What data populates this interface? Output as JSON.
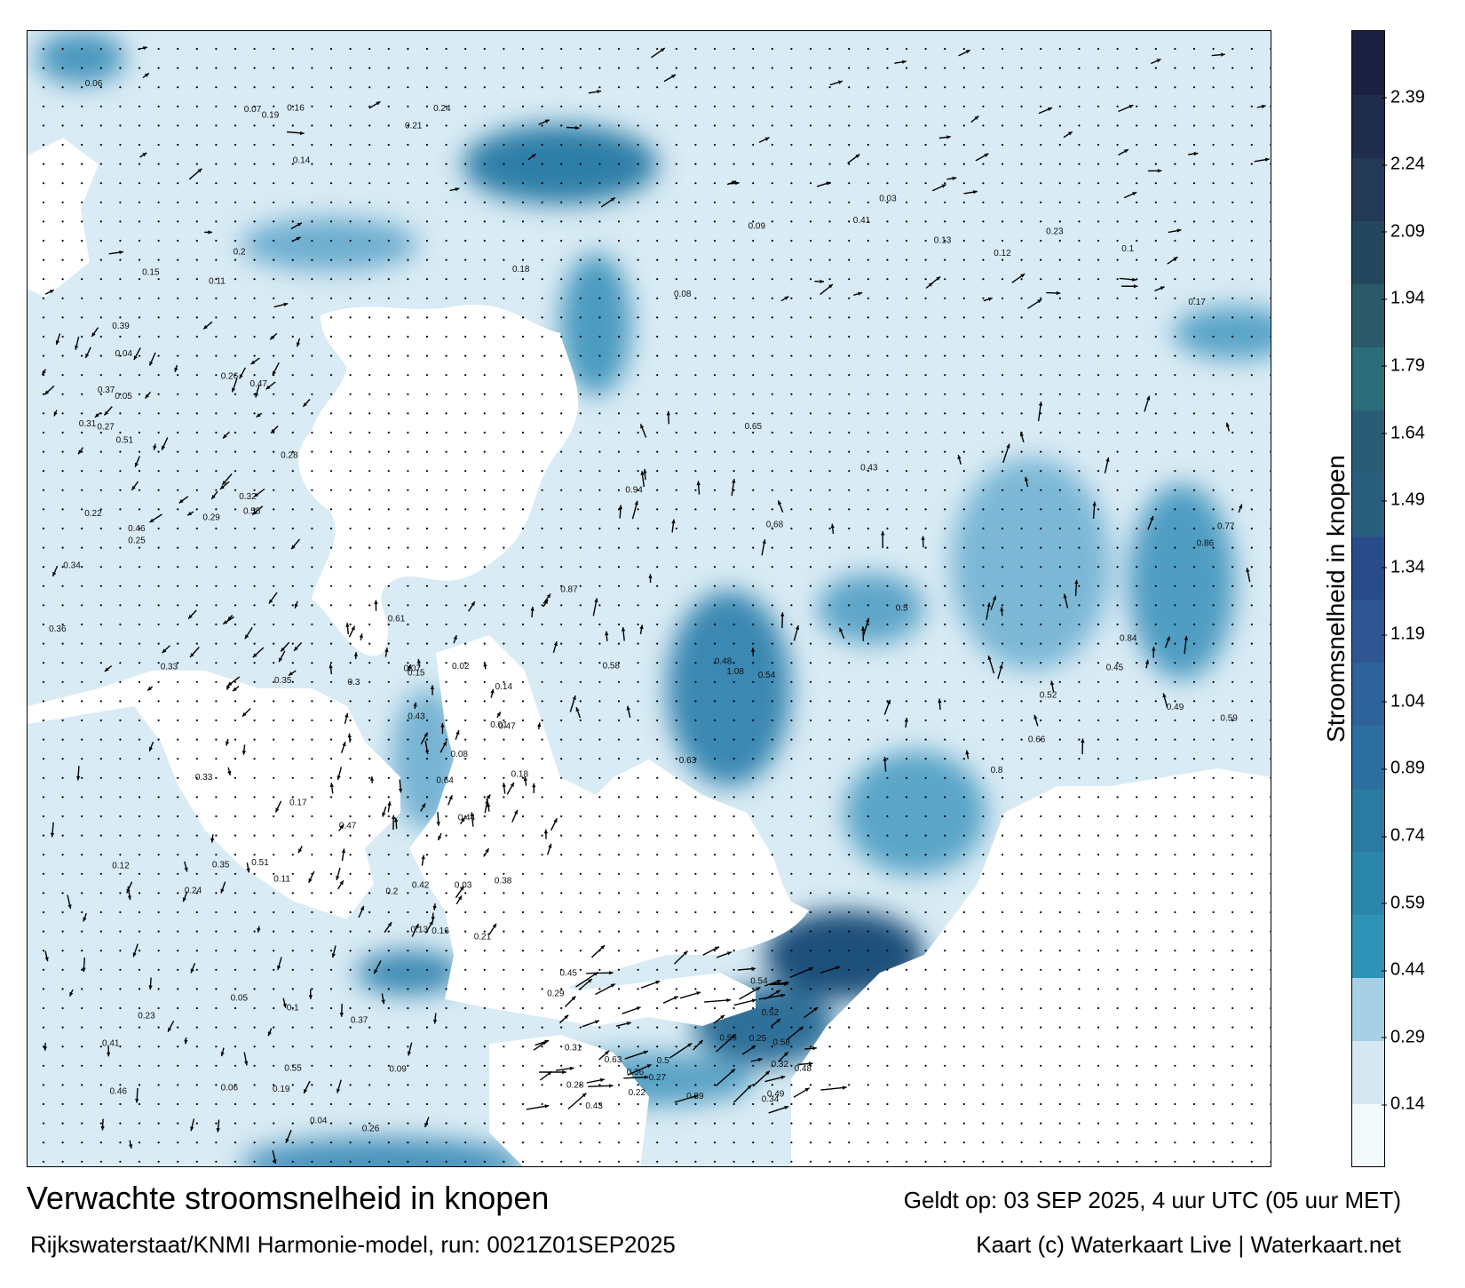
{
  "map": {
    "title": "Verwachte stroomsnelheid in knopen",
    "valid_time": "Geldt op: 03 SEP 2025, 4 uur UTC (05 uur MET)",
    "model_run": "Rijkswaterstaat/KNMI Harmonie-model, run: 0021Z01SEP2025",
    "credit": "Kaart (c) Waterkaart Live | Waterkaart.net",
    "colorbar_label": "Stroomsnelheid in knopen",
    "colorbar_ticks": [
      "2.39",
      "2.24",
      "2.09",
      "1.94",
      "1.79",
      "1.64",
      "1.49",
      "1.34",
      "1.19",
      "1.04",
      "0.89",
      "0.74",
      "0.59",
      "0.44",
      "0.29",
      "0.14"
    ],
    "colorbar_range": [
      0,
      2.54
    ],
    "colorbar_colors": [
      "#f4f9fc",
      "#d5e8f2",
      "#a8d0e4",
      "#2f93b8",
      "#2a86ab",
      "#2a7aa2",
      "#2d6ea0",
      "#2e629a",
      "#2d5693",
      "#2a4b8a",
      "#285f7c",
      "#2a5d75",
      "#2b6e7a",
      "#2a5a6a",
      "#25475e",
      "#223a55",
      "#1f2d4c",
      "#1c2040"
    ],
    "colors": {
      "water_light": "#d3e7f2",
      "water_mid": "#6aaccd",
      "water_dark": "#2c6f99",
      "land": "#ffffff",
      "arrow": "#000000"
    },
    "speed_labels": [
      {
        "v": "0.2"
      },
      {
        "v": "0.08"
      },
      {
        "v": "0.13"
      },
      {
        "v": "0.07"
      },
      {
        "v": "0.16"
      },
      {
        "v": "0.18"
      },
      {
        "v": "0.14"
      },
      {
        "v": "0.03"
      },
      {
        "v": "0.15"
      },
      {
        "v": "0.21"
      },
      {
        "v": "0.24"
      },
      {
        "v": "0.09"
      },
      {
        "v": "0.12"
      },
      {
        "v": "0.06"
      },
      {
        "v": "0.19"
      },
      {
        "v": "0.1"
      },
      {
        "v": "0.11"
      },
      {
        "v": "0.17"
      },
      {
        "v": "0.23"
      },
      {
        "v": "0.41"
      },
      {
        "v": "0.55"
      },
      {
        "v": "0.47"
      },
      {
        "v": "0.51"
      },
      {
        "v": "0.46"
      },
      {
        "v": "0.04"
      },
      {
        "v": "0.05"
      },
      {
        "v": "0.26"
      },
      {
        "v": "0.33"
      },
      {
        "v": "0.37"
      },
      {
        "v": "0.35"
      },
      {
        "v": "0.28"
      },
      {
        "v": "0.22"
      },
      {
        "v": "0.31"
      },
      {
        "v": "0.29"
      },
      {
        "v": "0.27"
      },
      {
        "v": "0.25"
      },
      {
        "v": "0.32"
      },
      {
        "v": "0.36"
      },
      {
        "v": "0.34"
      },
      {
        "v": "0.39"
      },
      {
        "v": "0.45"
      },
      {
        "v": "0.48"
      },
      {
        "v": "0.43"
      },
      {
        "v": "0.49"
      },
      {
        "v": "0.54"
      },
      {
        "v": "0.5"
      },
      {
        "v": "0.52"
      },
      {
        "v": "0.58"
      },
      {
        "v": "0.59"
      },
      {
        "v": "0.63"
      },
      {
        "v": "0.66"
      },
      {
        "v": "0.68"
      },
      {
        "v": "0.77"
      },
      {
        "v": "0.8"
      },
      {
        "v": "0.84"
      },
      {
        "v": "0.94"
      },
      {
        "v": "0.86"
      },
      {
        "v": "0.87"
      },
      {
        "v": "1.08"
      },
      {
        "v": "0.65"
      },
      {
        "v": "0.64"
      },
      {
        "v": "0.61"
      },
      {
        "v": "0.42"
      },
      {
        "v": "0.38"
      },
      {
        "v": "0.43"
      },
      {
        "v": "0.47"
      },
      {
        "v": "0.3"
      },
      {
        "v": "0.44"
      },
      {
        "v": "0.01"
      },
      {
        "v": "0.02"
      }
    ]
  }
}
